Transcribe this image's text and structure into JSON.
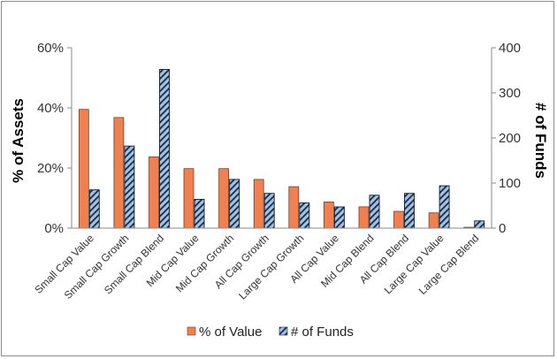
{
  "chart_data": {
    "type": "bar",
    "categories": [
      "Small Cap Value",
      "Small Cap Growth",
      "Small Cap Blend",
      "Mid Cap Value",
      "Mid Cap Growth",
      "All Cap Growth",
      "Large Cap Growth",
      "All Cap Value",
      "Mid Cap Blend",
      "All Cap Blend",
      "Large Cap Value",
      "Large Cap Blend"
    ],
    "series": [
      {
        "name": "% of Value",
        "axis": "left",
        "color": "#f08050",
        "values": [
          39.5,
          36.8,
          23.7,
          19.8,
          19.8,
          16.2,
          13.8,
          8.7,
          7.1,
          5.6,
          5.1,
          0.3
        ]
      },
      {
        "name": "# of Funds",
        "axis": "right",
        "color": "#9fc2e6",
        "pattern": "diagonal-stripes",
        "values": [
          85,
          182,
          352,
          64,
          108,
          77,
          56,
          47,
          73,
          77,
          94,
          16
        ]
      }
    ],
    "yleft": {
      "label": "% of Assets",
      "ylim": [
        0,
        60
      ],
      "ticks": [
        "0%",
        "20%",
        "40%",
        "60%"
      ],
      "tick_values": [
        0,
        20,
        40,
        60
      ]
    },
    "yright": {
      "label": "# of Funds",
      "ylim": [
        0,
        400
      ],
      "ticks": [
        "0",
        "100",
        "200",
        "300",
        "400"
      ],
      "tick_values": [
        0,
        100,
        200,
        300,
        400
      ]
    },
    "xlabel": "",
    "title": "",
    "grid": false,
    "legend": "bottom"
  }
}
